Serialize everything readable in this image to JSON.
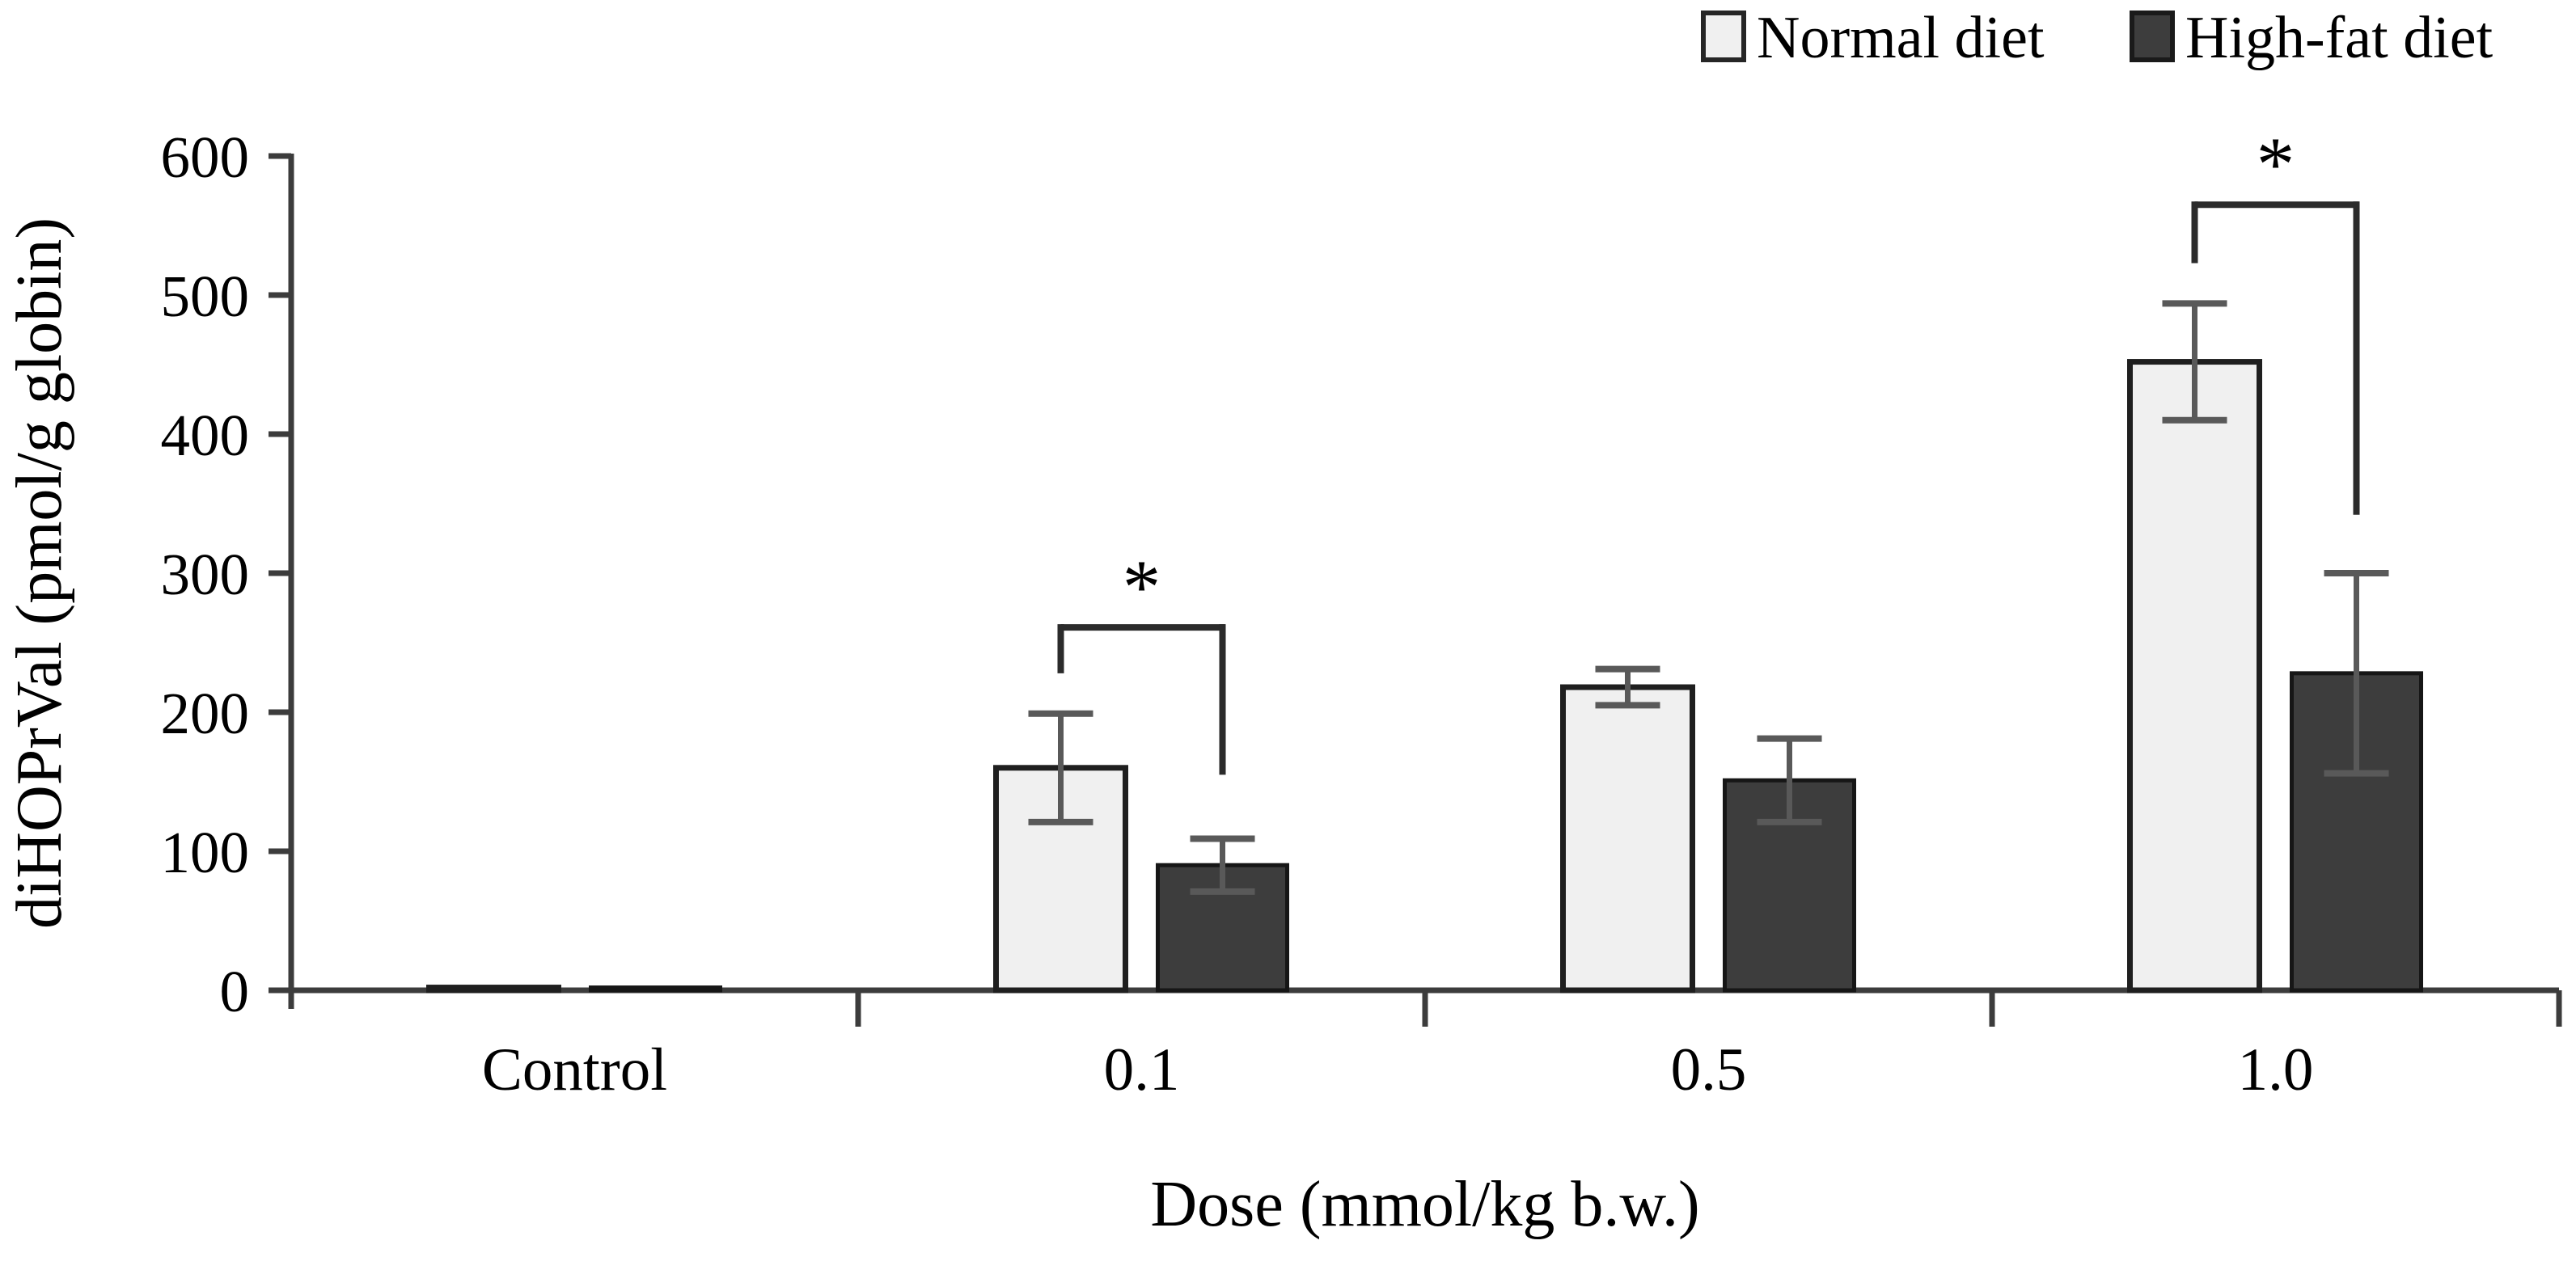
{
  "figure": {
    "kind": "grouped bar chart with error bars and significance brackets",
    "background": "#ffffff"
  },
  "legend": {
    "items": [
      {
        "label": "Normal diet",
        "swatch_color": "#f0f0f0",
        "swatch_border": "#262626"
      },
      {
        "label": "High-fat diet",
        "swatch_color": "#3d3d3d",
        "swatch_border": "#1a1a1a"
      }
    ],
    "position": "top-right"
  },
  "chart_data": {
    "type": "bar",
    "title": "",
    "xlabel": "Dose (mmol/kg b.w.)",
    "ylabel": "diHOPrVal (pmol/g globin)",
    "categories": [
      "Control",
      "0.1",
      "0.5",
      "1.0"
    ],
    "series": [
      {
        "name": "Normal diet",
        "values": [
          2,
          160,
          218,
          452
        ],
        "errors": [
          0,
          39,
          13,
          42
        ],
        "fill": "#f0f0f0",
        "stroke": "#1f1f1f"
      },
      {
        "name": "High-fat diet",
        "values": [
          2,
          90,
          151,
          228
        ],
        "errors": [
          0,
          19,
          30,
          72
        ],
        "fill": "#3d3d3d",
        "stroke": "#161616"
      }
    ],
    "ylim": [
      0,
      600
    ],
    "ytick_step": 100,
    "yticks": [
      0,
      100,
      200,
      300,
      400,
      500,
      600
    ],
    "grid": false,
    "legend_position": "top-right",
    "error_bar_color": "#595959",
    "axis_color": "#3c3c3c",
    "significance": [
      {
        "category_index": 1,
        "label": "*",
        "bar_y": 261,
        "left_drop_to": 228,
        "right_drop_to": 155
      },
      {
        "category_index": 3,
        "label": "*",
        "bar_y": 565,
        "left_drop_to": 523,
        "right_drop_to": 342
      }
    ]
  }
}
